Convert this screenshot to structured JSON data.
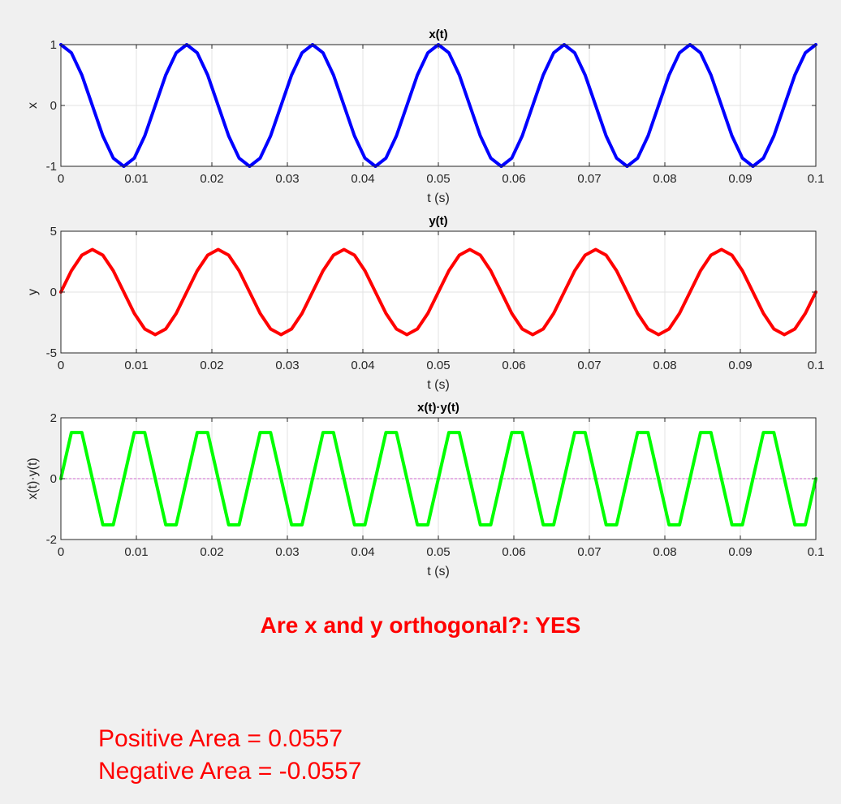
{
  "chart_data": [
    {
      "type": "line",
      "title": "x(t)",
      "xlabel": "t (s)",
      "ylabel": "x",
      "xlim": [
        0,
        0.1
      ],
      "ylim": [
        -1,
        1
      ],
      "xticks": [
        "0",
        "0.01",
        "0.02",
        "0.03",
        "0.04",
        "0.05",
        "0.06",
        "0.07",
        "0.08",
        "0.09",
        "0.1"
      ],
      "yticks": [
        "-1",
        "0",
        "1"
      ],
      "grid": true,
      "series": [
        {
          "color": "#0000ff",
          "x": [
            0,
            0.001389,
            0.002778,
            0.004167,
            0.005556,
            0.006944,
            0.008333,
            0.009722,
            0.011111,
            0.0125,
            0.013889,
            0.015278,
            0.016667,
            0.018056,
            0.019444,
            0.020833,
            0.022222,
            0.023611,
            0.025,
            0.026389,
            0.027778,
            0.029167,
            0.030556,
            0.031944,
            0.033333,
            0.034722,
            0.036111,
            0.0375,
            0.038889,
            0.040278,
            0.041667,
            0.043056,
            0.044444,
            0.045833,
            0.047222,
            0.048611,
            0.05,
            0.051389,
            0.052778,
            0.054167,
            0.055556,
            0.056944,
            0.058333,
            0.059722,
            0.061111,
            0.0625,
            0.063889,
            0.065278,
            0.066667,
            0.068056,
            0.069444,
            0.070833,
            0.072222,
            0.073611,
            0.075,
            0.076389,
            0.077778,
            0.079167,
            0.080556,
            0.081944,
            0.083333,
            0.084722,
            0.086111,
            0.0875,
            0.088889,
            0.090278,
            0.091667,
            0.093056,
            0.094444,
            0.095833,
            0.097222,
            0.098611,
            0.1
          ],
          "y": [
            1,
            0.866,
            0.5,
            0,
            -0.5,
            -0.866,
            -1,
            -0.866,
            -0.5,
            0,
            0.5,
            0.866,
            1,
            0.866,
            0.5,
            0,
            -0.5,
            -0.866,
            -1,
            -0.866,
            -0.5,
            0,
            0.5,
            0.866,
            1,
            0.866,
            0.5,
            0,
            -0.5,
            -0.866,
            -1,
            -0.866,
            -0.5,
            0,
            0.5,
            0.866,
            1,
            0.866,
            0.5,
            0,
            -0.5,
            -0.866,
            -1,
            -0.866,
            -0.5,
            0,
            0.5,
            0.866,
            1,
            0.866,
            0.5,
            0,
            -0.5,
            -0.866,
            -1,
            -0.866,
            -0.5,
            0,
            0.5,
            0.866,
            1,
            0.866,
            0.5,
            0,
            -0.5,
            -0.866,
            -1,
            -0.866,
            -0.5,
            0,
            0.5,
            0.866,
            1
          ]
        }
      ]
    },
    {
      "type": "line",
      "title": "y(t)",
      "xlabel": "t (s)",
      "ylabel": "y",
      "xlim": [
        0,
        0.1
      ],
      "ylim": [
        -5,
        5
      ],
      "xticks": [
        "0",
        "0.01",
        "0.02",
        "0.03",
        "0.04",
        "0.05",
        "0.06",
        "0.07",
        "0.08",
        "0.09",
        "0.1"
      ],
      "yticks": [
        "-5",
        "0",
        "5"
      ],
      "grid": true,
      "series": [
        {
          "color": "#ff0000",
          "x": [
            0,
            0.001389,
            0.002778,
            0.004167,
            0.005556,
            0.006944,
            0.008333,
            0.009722,
            0.011111,
            0.0125,
            0.013889,
            0.015278,
            0.016667,
            0.018056,
            0.019444,
            0.020833,
            0.022222,
            0.023611,
            0.025,
            0.026389,
            0.027778,
            0.029167,
            0.030556,
            0.031944,
            0.033333,
            0.034722,
            0.036111,
            0.0375,
            0.038889,
            0.040278,
            0.041667,
            0.043056,
            0.044444,
            0.045833,
            0.047222,
            0.048611,
            0.05,
            0.051389,
            0.052778,
            0.054167,
            0.055556,
            0.056944,
            0.058333,
            0.059722,
            0.061111,
            0.0625,
            0.063889,
            0.065278,
            0.066667,
            0.068056,
            0.069444,
            0.070833,
            0.072222,
            0.073611,
            0.075,
            0.076389,
            0.077778,
            0.079167,
            0.080556,
            0.081944,
            0.083333,
            0.084722,
            0.086111,
            0.0875,
            0.088889,
            0.090278,
            0.091667,
            0.093056,
            0.094444,
            0.095833,
            0.097222,
            0.098611,
            0.1
          ],
          "y": [
            0,
            1.75,
            3.031,
            3.5,
            3.031,
            1.75,
            0,
            -1.75,
            -3.031,
            -3.5,
            -3.031,
            -1.75,
            0,
            1.75,
            3.031,
            3.5,
            3.031,
            1.75,
            0,
            -1.75,
            -3.031,
            -3.5,
            -3.031,
            -1.75,
            0,
            1.75,
            3.031,
            3.5,
            3.031,
            1.75,
            0,
            -1.75,
            -3.031,
            -3.5,
            -3.031,
            -1.75,
            0,
            1.75,
            3.031,
            3.5,
            3.031,
            1.75,
            0,
            -1.75,
            -3.031,
            -3.5,
            -3.031,
            -1.75,
            0,
            1.75,
            3.031,
            3.5,
            3.031,
            1.75,
            0,
            -1.75,
            -3.031,
            -3.5,
            -3.031,
            -1.75,
            0,
            1.75,
            3.031,
            3.5,
            3.031,
            1.75,
            0,
            -1.75,
            -3.031,
            -3.5,
            -3.031,
            -1.75,
            0
          ]
        }
      ]
    },
    {
      "type": "line",
      "title": "x(t)·y(t)",
      "xlabel": "t (s)",
      "ylabel": "x(t)·y(t)",
      "xlim": [
        0,
        0.1
      ],
      "ylim": [
        -2,
        2
      ],
      "xticks": [
        "0",
        "0.01",
        "0.02",
        "0.03",
        "0.04",
        "0.05",
        "0.06",
        "0.07",
        "0.08",
        "0.09",
        "0.1"
      ],
      "yticks": [
        "-2",
        "0",
        "2"
      ],
      "grid": true,
      "zero_line": {
        "y": 0,
        "color": "#cc66cc",
        "style": "dashed"
      },
      "series": [
        {
          "color": "#00ff00",
          "x": [
            0,
            0.001389,
            0.002778,
            0.004167,
            0.005556,
            0.006944,
            0.008333,
            0.009722,
            0.011111,
            0.0125,
            0.013889,
            0.015278,
            0.016667,
            0.018056,
            0.019444,
            0.020833,
            0.022222,
            0.023611,
            0.025,
            0.026389,
            0.027778,
            0.029167,
            0.030556,
            0.031944,
            0.033333,
            0.034722,
            0.036111,
            0.0375,
            0.038889,
            0.040278,
            0.041667,
            0.043056,
            0.044444,
            0.045833,
            0.047222,
            0.048611,
            0.05,
            0.051389,
            0.052778,
            0.054167,
            0.055556,
            0.056944,
            0.058333,
            0.059722,
            0.061111,
            0.0625,
            0.063889,
            0.065278,
            0.066667,
            0.068056,
            0.069444,
            0.070833,
            0.072222,
            0.073611,
            0.075,
            0.076389,
            0.077778,
            0.079167,
            0.080556,
            0.081944,
            0.083333,
            0.084722,
            0.086111,
            0.0875,
            0.088889,
            0.090278,
            0.091667,
            0.093056,
            0.094444,
            0.095833,
            0.097222,
            0.098611,
            0.1
          ],
          "y": [
            0,
            1.516,
            1.516,
            0,
            -1.516,
            -1.516,
            0,
            1.516,
            1.516,
            0,
            -1.516,
            -1.516,
            0,
            1.516,
            1.516,
            0,
            -1.516,
            -1.516,
            0,
            1.516,
            1.516,
            0,
            -1.516,
            -1.516,
            0,
            1.516,
            1.516,
            0,
            -1.516,
            -1.516,
            0,
            1.516,
            1.516,
            0,
            -1.516,
            -1.516,
            0,
            1.516,
            1.516,
            0,
            -1.516,
            -1.516,
            0,
            1.516,
            1.516,
            0,
            -1.516,
            -1.516,
            0,
            1.516,
            1.516,
            0,
            -1.516,
            -1.516,
            0,
            1.516,
            1.516,
            0,
            -1.516,
            -1.516,
            0,
            1.516,
            1.516,
            0,
            -1.516,
            -1.516,
            0,
            1.516,
            1.516,
            0,
            -1.516,
            -1.516,
            0
          ]
        }
      ]
    }
  ],
  "results": {
    "orthogonal_text": "Are x and y orthogonal?: YES",
    "positive_area_text": "Positive Area = 0.0557",
    "negative_area_text": "Negative Area = -0.0557",
    "text_color": "#ff0000"
  }
}
